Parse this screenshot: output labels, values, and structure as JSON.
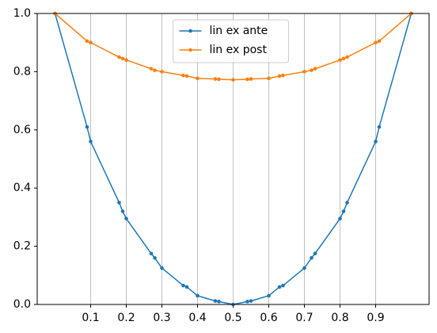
{
  "chart_data": {
    "type": "line",
    "x": [
      0,
      0.09,
      0.1,
      0.18,
      0.19,
      0.2,
      0.27,
      0.28,
      0.3,
      0.36,
      0.37,
      0.4,
      0.45,
      0.46,
      0.5,
      0.54,
      0.55,
      0.6,
      0.63,
      0.64,
      0.7,
      0.72,
      0.73,
      0.8,
      0.81,
      0.82,
      0.9,
      0.91,
      1.0
    ],
    "series": [
      {
        "name": "lin ex ante",
        "color": "#1f77b4",
        "values": [
          1.0,
          0.61,
          0.56,
          0.35,
          0.32,
          0.295,
          0.175,
          0.16,
          0.125,
          0.065,
          0.06,
          0.03,
          0.012,
          0.01,
          0,
          0.01,
          0.012,
          0.03,
          0.06,
          0.065,
          0.125,
          0.16,
          0.175,
          0.295,
          0.32,
          0.35,
          0.56,
          0.61,
          1.0
        ]
      },
      {
        "name": "lin ex post",
        "color": "#ff7f0e",
        "values": [
          1.0,
          0.905,
          0.9,
          0.85,
          0.845,
          0.84,
          0.81,
          0.805,
          0.8,
          0.787,
          0.785,
          0.777,
          0.775,
          0.774,
          0.772,
          0.774,
          0.775,
          0.777,
          0.785,
          0.787,
          0.8,
          0.805,
          0.81,
          0.84,
          0.845,
          0.85,
          0.9,
          0.905,
          1.0
        ]
      }
    ],
    "xlim": [
      -0.05,
      1.05
    ],
    "ylim": [
      0,
      1
    ],
    "xticks": [
      0.1,
      0.2,
      0.3,
      0.4,
      0.5,
      0.6,
      0.7,
      0.8,
      0.9
    ],
    "yticks": [
      {
        "value": 0,
        "label": "0.0"
      },
      0.2,
      0.4,
      0.6,
      0.8,
      {
        "value": 1,
        "label": "1.0"
      }
    ],
    "grid": "x",
    "legend": "upper center"
  }
}
